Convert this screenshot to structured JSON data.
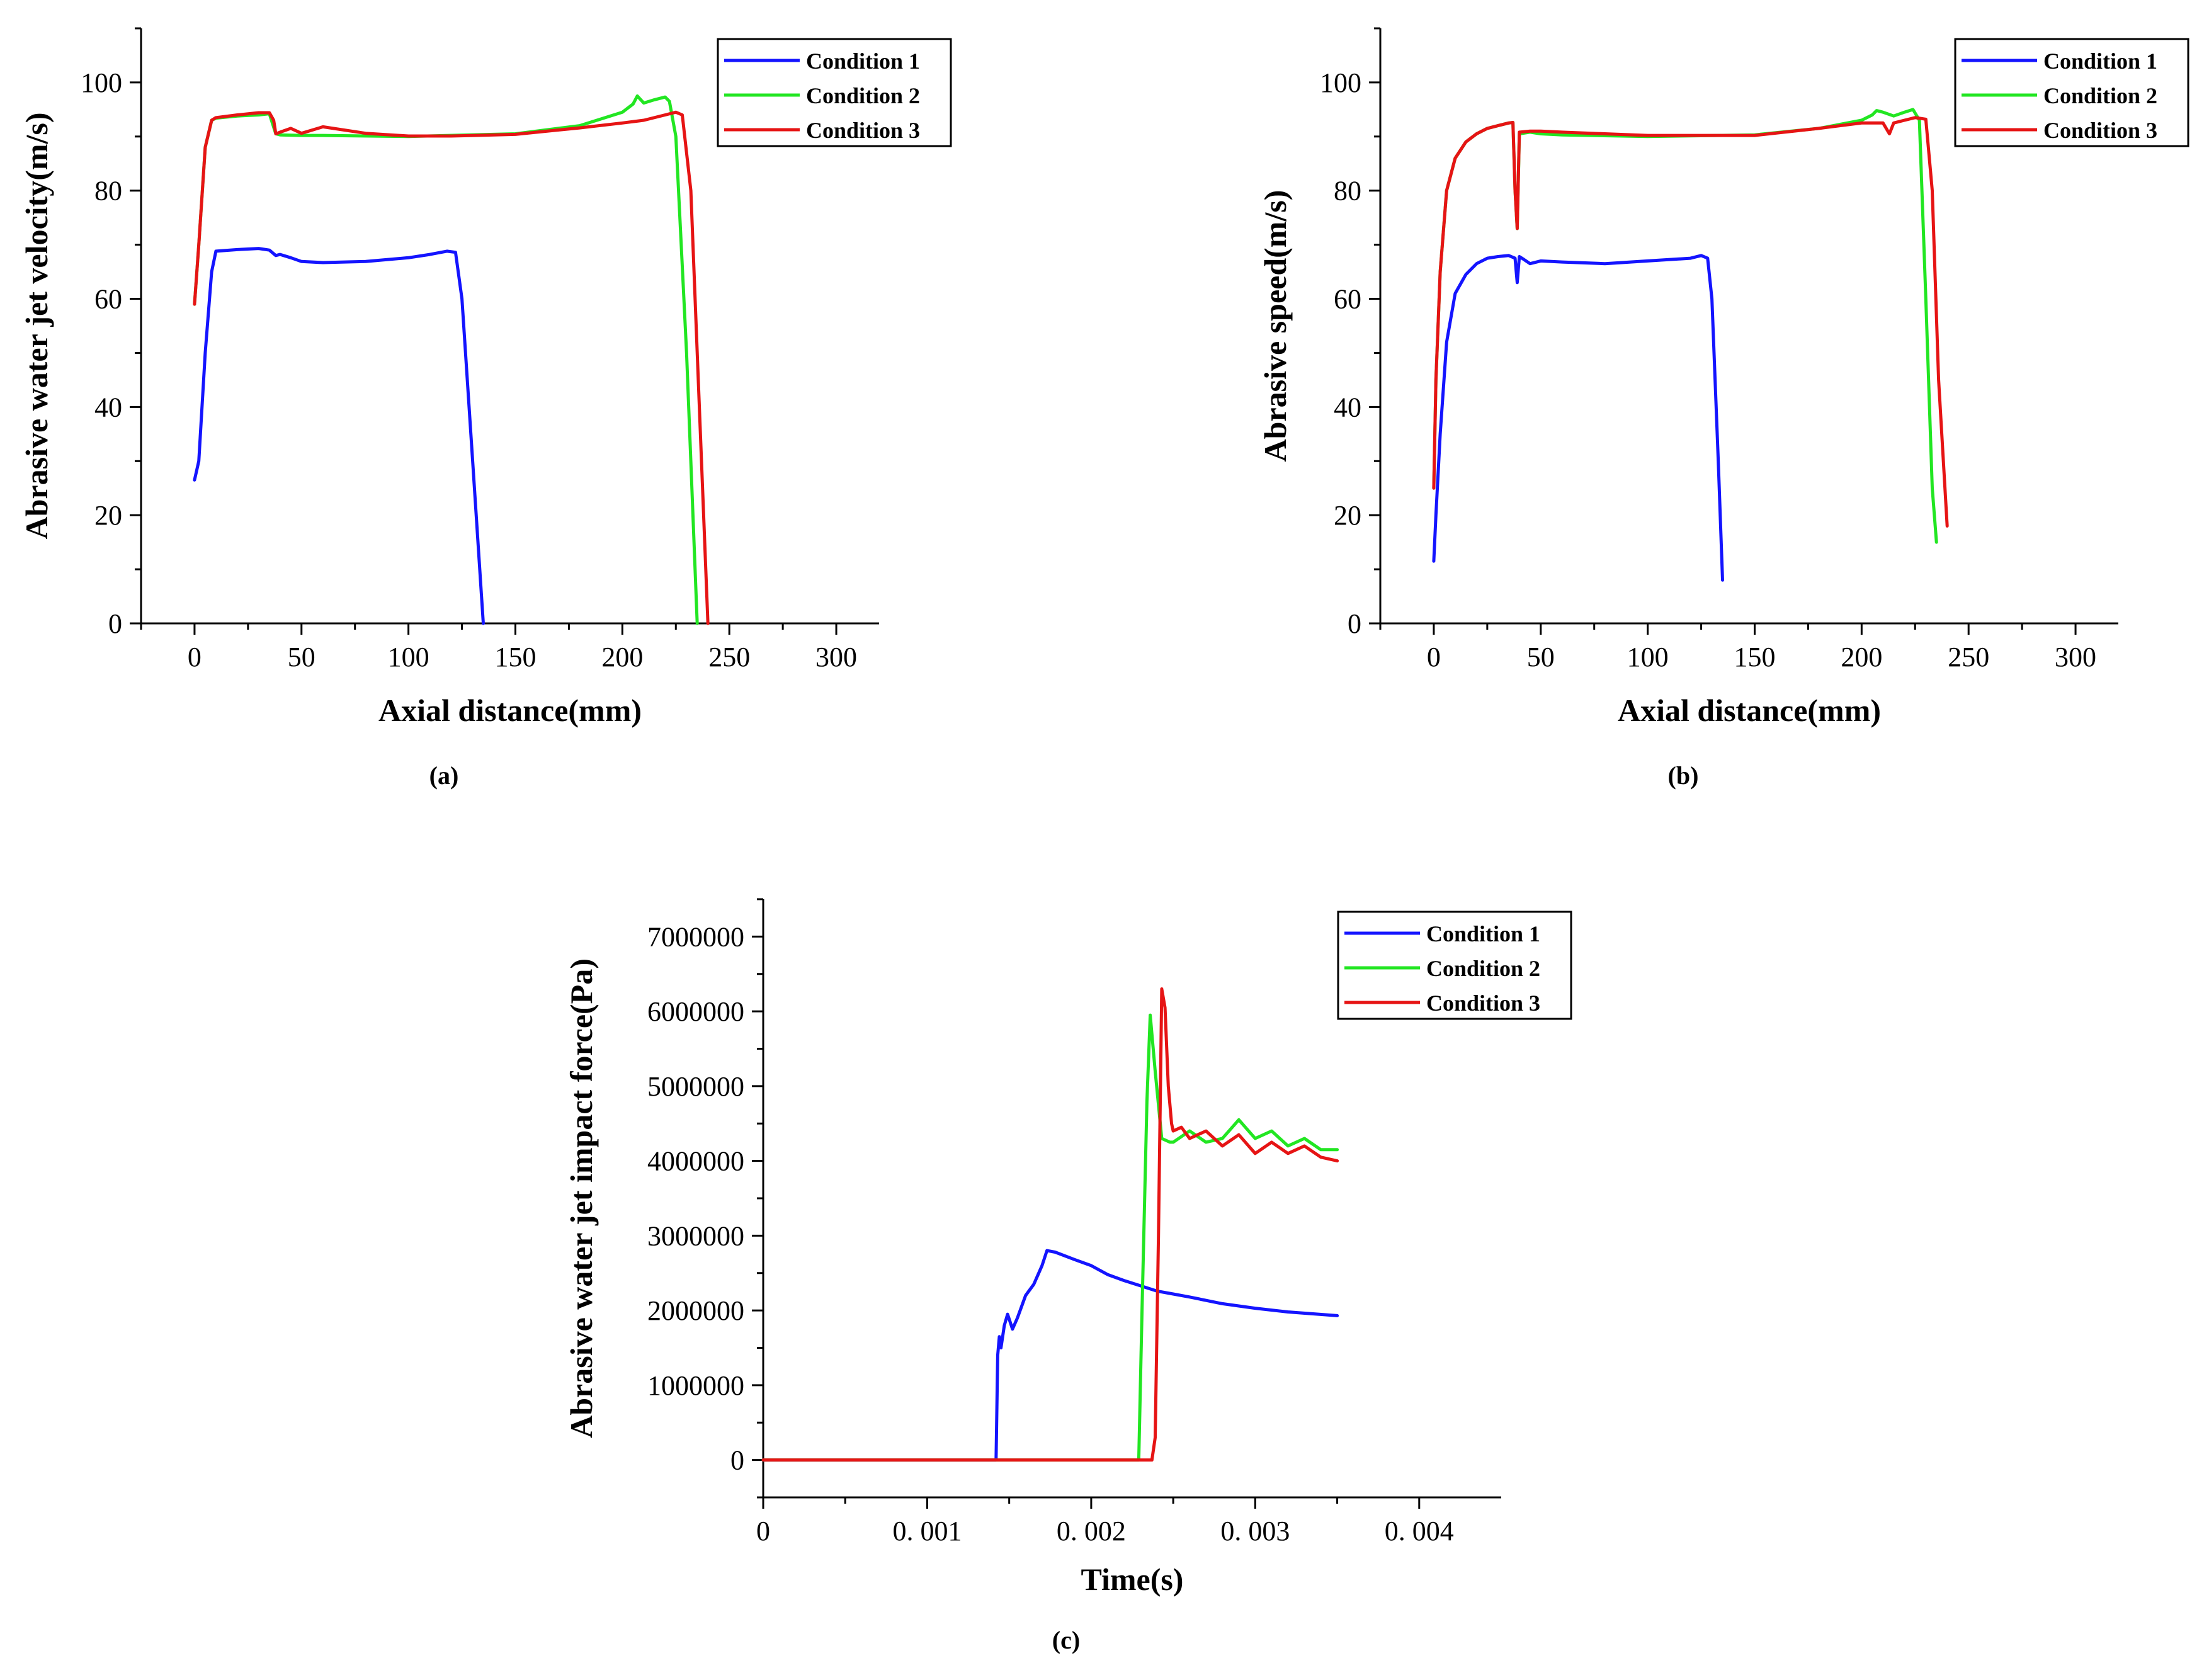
{
  "colors": {
    "condition_1": "#1414ff",
    "condition_2": "#22e622",
    "condition_3": "#e61414"
  },
  "chart_data": [
    {
      "id": "a",
      "type": "line",
      "panel_label": "(a)",
      "xlabel": "Axial distance(mm)",
      "ylabel": "Abrasive water jet velocity(m/s)",
      "xlim": [
        -25,
        320
      ],
      "ylim": [
        0,
        110
      ],
      "xticks": [
        0,
        50,
        100,
        150,
        200,
        250,
        300
      ],
      "xtick_labels": [
        "0",
        "50",
        "100",
        "150",
        "200",
        "250",
        "300"
      ],
      "yticks": [
        0,
        20,
        40,
        60,
        80,
        100
      ],
      "ytick_labels": [
        "0",
        "20",
        "40",
        "60",
        "80",
        "100"
      ],
      "legend_position": "top-right",
      "series": [
        {
          "name": "Condition 1",
          "color": "#1414ff",
          "x": [
            0,
            2,
            5,
            8,
            10,
            20,
            30,
            35,
            38,
            40,
            45,
            50,
            60,
            80,
            100,
            110,
            118,
            122,
            125,
            130,
            135
          ],
          "y": [
            26.5,
            30,
            50,
            65,
            68.8,
            69.1,
            69.3,
            69,
            68,
            68.2,
            67.6,
            66.9,
            66.7,
            66.9,
            67.6,
            68.2,
            68.8,
            68.6,
            60,
            30,
            0
          ]
        },
        {
          "name": "Condition 2",
          "color": "#22e622",
          "x": [
            0,
            2,
            5,
            8,
            10,
            20,
            30,
            35,
            38,
            40,
            50,
            60,
            100,
            150,
            180,
            200,
            205,
            207,
            210,
            215,
            220,
            222,
            225,
            230,
            235
          ],
          "y": [
            59,
            70,
            88,
            93,
            93.4,
            93.8,
            94,
            94.2,
            90.5,
            90.3,
            90.2,
            90.2,
            90,
            90.5,
            92,
            94.5,
            96,
            97.5,
            96.2,
            96.8,
            97.3,
            96.5,
            90,
            50,
            0
          ]
        },
        {
          "name": "Condition 3",
          "color": "#e61414",
          "x": [
            0,
            2,
            5,
            8,
            10,
            20,
            30,
            35,
            37,
            38,
            40,
            45,
            50,
            60,
            80,
            100,
            120,
            150,
            180,
            200,
            210,
            220,
            225,
            228,
            232,
            236,
            240
          ],
          "y": [
            59,
            70,
            88,
            93,
            93.5,
            94,
            94.4,
            94.4,
            93,
            90.5,
            90.8,
            91.5,
            90.6,
            91.8,
            90.6,
            90.1,
            90.1,
            90.4,
            91.6,
            92.5,
            93,
            94,
            94.5,
            94,
            80,
            40,
            0
          ]
        }
      ]
    },
    {
      "id": "b",
      "type": "line",
      "panel_label": "(b)",
      "xlabel": "Axial distance(mm)",
      "ylabel": "Abrasive speed(m/s)",
      "xlim": [
        -25,
        320
      ],
      "ylim": [
        0,
        110
      ],
      "xticks": [
        0,
        50,
        100,
        150,
        200,
        250,
        300
      ],
      "xtick_labels": [
        "0",
        "50",
        "100",
        "150",
        "200",
        "250",
        "300"
      ],
      "yticks": [
        0,
        20,
        40,
        60,
        80,
        100
      ],
      "ytick_labels": [
        "0",
        "20",
        "40",
        "60",
        "80",
        "100"
      ],
      "legend_position": "top-right",
      "series": [
        {
          "name": "Condition 1",
          "color": "#1414ff",
          "x": [
            0,
            1,
            3,
            6,
            10,
            15,
            20,
            25,
            30,
            35,
            38,
            39,
            40,
            42,
            45,
            50,
            60,
            80,
            100,
            120,
            125,
            128,
            130,
            133,
            135
          ],
          "y": [
            11.5,
            20,
            35,
            52,
            61,
            64.5,
            66.5,
            67.5,
            67.8,
            68,
            67.5,
            63,
            67.8,
            67.3,
            66.5,
            67,
            66.8,
            66.5,
            67,
            67.5,
            68,
            67.5,
            60,
            30,
            8
          ]
        },
        {
          "name": "Condition 2",
          "color": "#22e622",
          "x": [
            0,
            1,
            3,
            6,
            10,
            15,
            20,
            25,
            30,
            35,
            37,
            38,
            39,
            40,
            45,
            50,
            60,
            100,
            150,
            180,
            200,
            205,
            207,
            210,
            215,
            220,
            224,
            227,
            230,
            233,
            235
          ],
          "y": [
            25,
            45,
            65,
            80,
            86,
            89,
            90.5,
            91.5,
            92,
            92.5,
            92.6,
            80,
            73,
            90.5,
            90.8,
            90.5,
            90.3,
            90,
            90.3,
            91.5,
            93,
            94,
            94.8,
            94.5,
            93.8,
            94.5,
            95,
            93,
            60,
            25,
            15
          ]
        },
        {
          "name": "Condition 3",
          "color": "#e61414",
          "x": [
            0,
            1,
            3,
            6,
            10,
            15,
            20,
            25,
            30,
            35,
            37,
            38,
            39,
            40,
            45,
            50,
            60,
            80,
            100,
            150,
            180,
            200,
            210,
            213,
            215,
            220,
            225,
            230,
            233,
            236,
            240
          ],
          "y": [
            25,
            45,
            65,
            80,
            86,
            89,
            90.5,
            91.5,
            92,
            92.5,
            92.6,
            80,
            73,
            90.8,
            91,
            91,
            90.8,
            90.5,
            90.2,
            90.2,
            91.5,
            92.5,
            92.5,
            90.5,
            92.5,
            93,
            93.5,
            93.2,
            80,
            45,
            18
          ]
        }
      ]
    },
    {
      "id": "c",
      "type": "line",
      "panel_label": "(c)",
      "xlabel": "Time(s)",
      "ylabel": "Abrasive water jet impact force(Pa)",
      "xlim": [
        0,
        0.0045
      ],
      "ylim": [
        -500000,
        7500000
      ],
      "xticks": [
        0,
        0.001,
        0.002,
        0.003,
        0.004
      ],
      "xtick_labels": [
        "0",
        "0. 001",
        "0. 002",
        "0. 003",
        "0. 004"
      ],
      "yticks": [
        0,
        1000000,
        2000000,
        3000000,
        4000000,
        5000000,
        6000000,
        7000000
      ],
      "ytick_labels": [
        "0",
        "1000000",
        "2000000",
        "3000000",
        "4000000",
        "5000000",
        "6000000",
        "7000000"
      ],
      "legend_position": "top-right",
      "series": [
        {
          "name": "Condition 1",
          "color": "#1414ff",
          "x": [
            0,
            0.00142,
            0.00143,
            0.00144,
            0.00145,
            0.00147,
            0.00149,
            0.00152,
            0.00155,
            0.0016,
            0.00165,
            0.0017,
            0.00173,
            0.00178,
            0.0019,
            0.002,
            0.0021,
            0.0022,
            0.0023,
            0.0024,
            0.0025,
            0.0026,
            0.0028,
            0.003,
            0.0032,
            0.0035
          ],
          "y": [
            0,
            0,
            1400000,
            1650000,
            1500000,
            1800000,
            1950000,
            1750000,
            1900000,
            2200000,
            2350000,
            2600000,
            2800000,
            2780000,
            2680000,
            2600000,
            2480000,
            2400000,
            2330000,
            2260000,
            2220000,
            2180000,
            2090000,
            2030000,
            1980000,
            1930000
          ]
        },
        {
          "name": "Condition 2",
          "color": "#22e622",
          "x": [
            0,
            0.00229,
            0.00231,
            0.00234,
            0.00236,
            0.00239,
            0.00243,
            0.00248,
            0.0025,
            0.0026,
            0.0027,
            0.0028,
            0.0029,
            0.003,
            0.0031,
            0.0032,
            0.0033,
            0.0034,
            0.0035
          ],
          "y": [
            0,
            0,
            2000000,
            4800000,
            5950000,
            5200000,
            4300000,
            4250000,
            4250000,
            4400000,
            4250000,
            4300000,
            4550000,
            4300000,
            4400000,
            4200000,
            4300000,
            4150000,
            4150000
          ]
        },
        {
          "name": "Condition 3",
          "color": "#e61414",
          "x": [
            0,
            0.00237,
            0.00239,
            0.00241,
            0.00243,
            0.00245,
            0.00247,
            0.00249,
            0.0025,
            0.00255,
            0.0026,
            0.0027,
            0.0028,
            0.0029,
            0.003,
            0.0031,
            0.0032,
            0.0033,
            0.0034,
            0.0035
          ],
          "y": [
            0,
            0,
            300000,
            3000000,
            6300000,
            6050000,
            5000000,
            4500000,
            4400000,
            4450000,
            4300000,
            4400000,
            4200000,
            4350000,
            4100000,
            4250000,
            4100000,
            4200000,
            4050000,
            4000000
          ]
        }
      ]
    }
  ]
}
